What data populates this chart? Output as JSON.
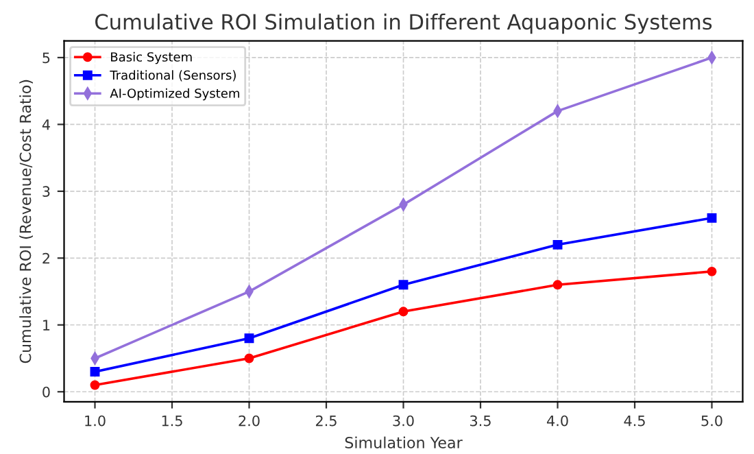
{
  "chart_data": {
    "type": "line",
    "title": "Cumulative ROI Simulation in Different Aquaponic Systems",
    "xlabel": "Simulation Year",
    "ylabel": "Cumulative ROI (Revenue/Cost Ratio)",
    "x": [
      1.0,
      2.0,
      3.0,
      4.0,
      5.0
    ],
    "series": [
      {
        "name": "Basic System",
        "color": "#ff0000",
        "marker": "circle",
        "values": [
          0.1,
          0.5,
          1.2,
          1.6,
          1.8
        ]
      },
      {
        "name": "Traditional (Sensors)",
        "color": "#0000ff",
        "marker": "square",
        "values": [
          0.3,
          0.8,
          1.6,
          2.2,
          2.6
        ]
      },
      {
        "name": "AI-Optimized System",
        "color": "#9370db",
        "marker": "diamond",
        "values": [
          0.5,
          1.5,
          2.8,
          4.2,
          5.0
        ]
      }
    ],
    "xlim": [
      0.8,
      5.2
    ],
    "ylim": [
      -0.15,
      5.25
    ],
    "xticks": [
      {
        "value": 1.0,
        "label": "1.0"
      },
      {
        "value": 1.5,
        "label": "1.5"
      },
      {
        "value": 2.0,
        "label": "2.0"
      },
      {
        "value": 2.5,
        "label": "2.5"
      },
      {
        "value": 3.0,
        "label": "3.0"
      },
      {
        "value": 3.5,
        "label": "3.5"
      },
      {
        "value": 4.0,
        "label": "4.0"
      },
      {
        "value": 4.5,
        "label": "4.5"
      },
      {
        "value": 5.0,
        "label": "5.0"
      }
    ],
    "yticks": [
      0,
      1,
      2,
      3,
      4,
      5
    ],
    "grid": true,
    "legend": "top left",
    "line_style": "solid"
  }
}
